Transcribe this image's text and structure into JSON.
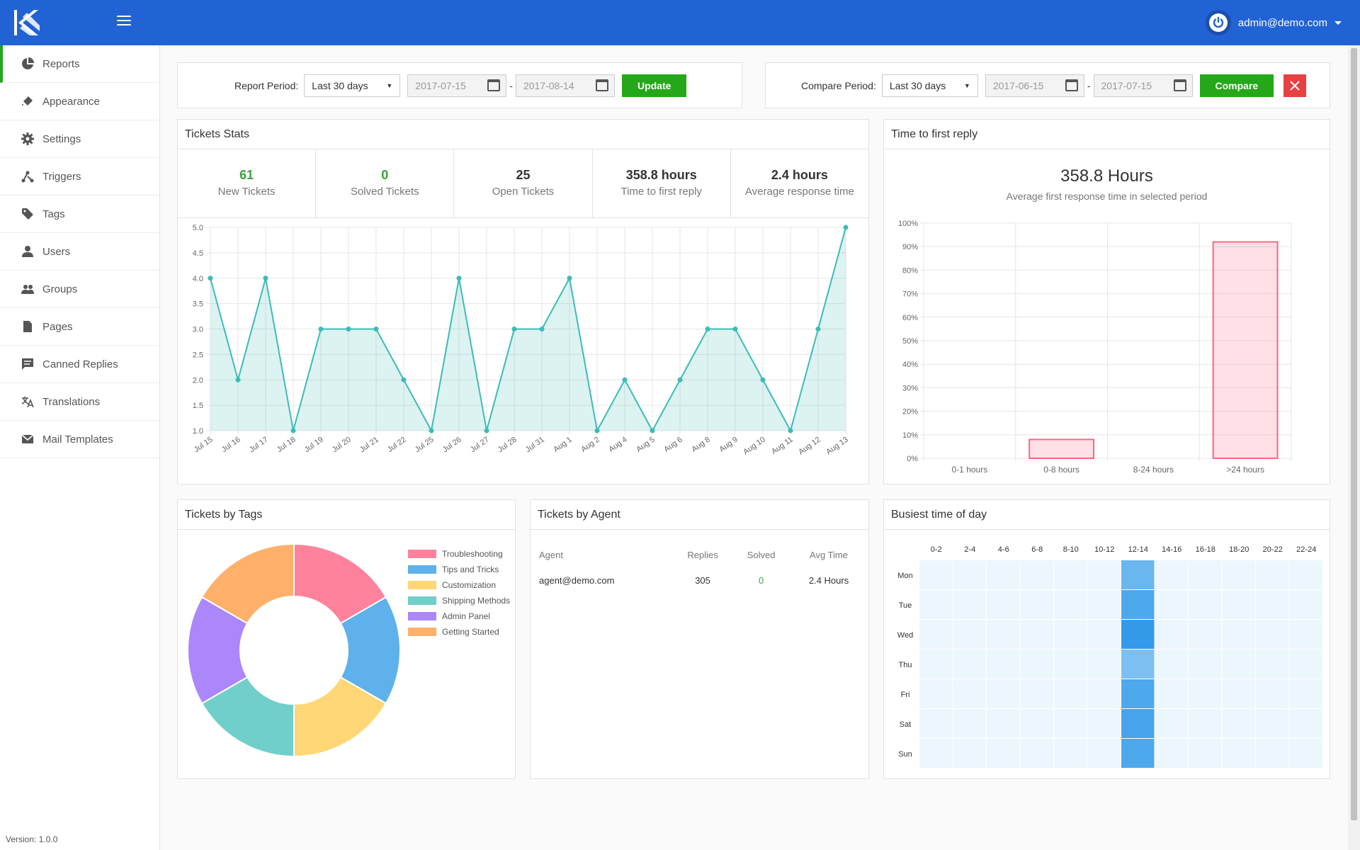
{
  "header": {
    "user_email": "admin@demo.com"
  },
  "sidebar": {
    "items": [
      {
        "label": "Reports",
        "icon": "pie-chart-icon",
        "active": true
      },
      {
        "label": "Appearance",
        "icon": "paint-bucket-icon"
      },
      {
        "label": "Settings",
        "icon": "gear-icon"
      },
      {
        "label": "Triggers",
        "icon": "triggers-icon"
      },
      {
        "label": "Tags",
        "icon": "tag-icon"
      },
      {
        "label": "Users",
        "icon": "user-icon"
      },
      {
        "label": "Groups",
        "icon": "group-icon"
      },
      {
        "label": "Pages",
        "icon": "page-icon"
      },
      {
        "label": "Canned Replies",
        "icon": "chat-icon"
      },
      {
        "label": "Translations",
        "icon": "translate-icon"
      },
      {
        "label": "Mail Templates",
        "icon": "mail-icon"
      }
    ],
    "version": "Version: 1.0.0"
  },
  "report_filter": {
    "label": "Report Period:",
    "period": "Last 30 days",
    "from": "2017-07-15",
    "to": "2017-08-14",
    "button": "Update"
  },
  "compare_filter": {
    "label": "Compare Period:",
    "period": "Last 30 days",
    "from": "2017-06-15",
    "to": "2017-07-15",
    "button": "Compare"
  },
  "tickets_stats": {
    "title": "Tickets Stats",
    "stats": [
      {
        "value": "61",
        "label": "New Tickets"
      },
      {
        "value": "0",
        "label": "Solved Tickets"
      },
      {
        "value": "25",
        "label": "Open Tickets"
      },
      {
        "value": "358.8 hours",
        "label": "Time to first reply"
      },
      {
        "value": "2.4 hours",
        "label": "Average response time"
      }
    ]
  },
  "first_reply": {
    "title": "Time to first reply",
    "value": "358.8 Hours",
    "subtitle": "Average first response time in selected period"
  },
  "tags_panel": {
    "title": "Tickets by Tags"
  },
  "agent_panel": {
    "title": "Tickets by Agent",
    "columns": [
      "Agent",
      "Replies",
      "Solved",
      "Avg Time"
    ],
    "rows": [
      {
        "agent": "agent@demo.com",
        "replies": "305",
        "solved": "0",
        "avg_time": "2.4 Hours"
      }
    ]
  },
  "busiest_panel": {
    "title": "Busiest time of day"
  },
  "colors": {
    "accent": "#2163d4",
    "green": "#24a819",
    "red": "#e84141",
    "line": "#3cbcb6"
  },
  "chart_data": [
    {
      "type": "area",
      "x": [
        "Jul 15",
        "Jul 16",
        "Jul 17",
        "Jul 18",
        "Jul 19",
        "Jul 20",
        "Jul 21",
        "Jul 22",
        "Jul 25",
        "Jul 26",
        "Jul 27",
        "Jul 28",
        "Jul 31",
        "Aug 1",
        "Aug 2",
        "Aug 4",
        "Aug 5",
        "Aug 6",
        "Aug 8",
        "Aug 9",
        "Aug 10",
        "Aug 11",
        "Aug 12",
        "Aug 13"
      ],
      "values": [
        4,
        2,
        4,
        1,
        3,
        3,
        3,
        2,
        1,
        4,
        1,
        3,
        3,
        4,
        1,
        2,
        1,
        2,
        3,
        3,
        2,
        1,
        3,
        5
      ],
      "ylim": [
        1,
        5
      ],
      "yticks": [
        "1.0",
        "1.5",
        "2.0",
        "2.5",
        "3.0",
        "3.5",
        "4.0",
        "4.5",
        "5.0"
      ]
    },
    {
      "type": "bar",
      "categories": [
        "0-1 hours",
        "0-8 hours",
        "8-24 hours",
        ">24 hours"
      ],
      "values": [
        0,
        8,
        0,
        92
      ],
      "ylim": [
        0,
        100
      ],
      "yticks": [
        "0%",
        "10%",
        "20%",
        "30%",
        "40%",
        "50%",
        "60%",
        "70%",
        "80%",
        "90%",
        "100%"
      ]
    },
    {
      "type": "pie",
      "labels": [
        "Troubleshooting",
        "Tips and Tricks",
        "Customization",
        "Shipping Methods",
        "Admin Panel",
        "Getting Started"
      ],
      "values": [
        1,
        1,
        1,
        1,
        1,
        1
      ],
      "colors": [
        "#ff829d",
        "#5eb1ea",
        "#ffd776",
        "#71cfcb",
        "#ac87fb",
        "#ffb06b"
      ]
    },
    {
      "type": "heatmap",
      "columns": [
        "0-2",
        "2-4",
        "4-6",
        "6-8",
        "8-10",
        "10-12",
        "12-14",
        "14-16",
        "16-18",
        "18-20",
        "20-22",
        "22-24"
      ],
      "rows": [
        "Mon",
        "Tue",
        "Wed",
        "Thu",
        "Fri",
        "Sat",
        "Sun"
      ],
      "values": [
        [
          0,
          0,
          0,
          0,
          0,
          0,
          0.55,
          0,
          0,
          0,
          0,
          0
        ],
        [
          0,
          0,
          0,
          0,
          0,
          0,
          0.75,
          0,
          0,
          0,
          0,
          0
        ],
        [
          0,
          0,
          0,
          0,
          0,
          0,
          0.95,
          0,
          0,
          0,
          0,
          0
        ],
        [
          0,
          0,
          0,
          0,
          0,
          0,
          0.4,
          0,
          0,
          0,
          0,
          0
        ],
        [
          0,
          0,
          0,
          0,
          0,
          0,
          0.75,
          0,
          0,
          0,
          0,
          0
        ],
        [
          0,
          0,
          0,
          0,
          0,
          0,
          0.8,
          0,
          0,
          0,
          0,
          0
        ],
        [
          0,
          0,
          0,
          0,
          0,
          0,
          0.75,
          0,
          0,
          0,
          0,
          0
        ]
      ]
    }
  ]
}
